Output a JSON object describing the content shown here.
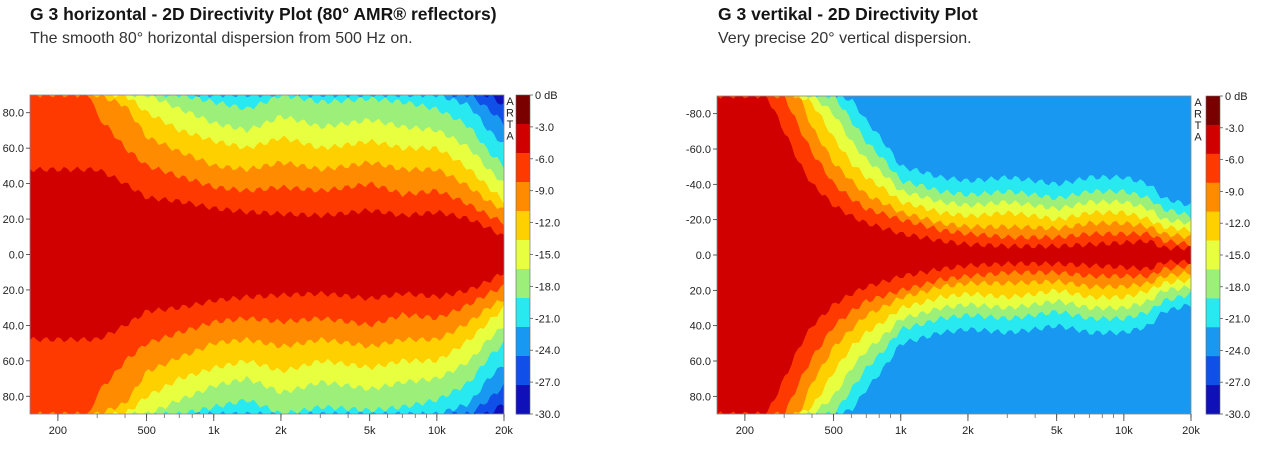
{
  "chart_data": [
    {
      "type": "heatmap",
      "title": "G 3 horizontal - 2D Directivity Plot (80° AMR® reflectors)",
      "subtitle": "The smooth 80° horizontal dispersion from 500 Hz on.",
      "x_scale": "log",
      "xlim": [
        150,
        20000
      ],
      "ylim": [
        -90,
        90
      ],
      "x_ticks": [
        200,
        500,
        1000,
        2000,
        5000,
        10000,
        20000
      ],
      "x_tick_labels": [
        "200",
        "500",
        "1k",
        "2k",
        "5k",
        "10k",
        "20k"
      ],
      "y_ticks": [
        -80,
        -60,
        -40,
        -20,
        0,
        20,
        40,
        60,
        80
      ],
      "y_tick_labels": [
        "80.0",
        "60.0",
        "40.0",
        "20.0",
        "0.0",
        "20.0",
        "40.0",
        "60.0",
        "80.0"
      ],
      "colorbar_labels": [
        "0 dB",
        "-3.0",
        "-6.0",
        "-9.0",
        "-12.0",
        "-15.0",
        "-18.0",
        "-21.0",
        "-24.0",
        "-27.0",
        "-30.0"
      ],
      "colorbar_colors": [
        "#7a0000",
        "#d10000",
        "#ff3a00",
        "#ff8c00",
        "#ffd000",
        "#e8ff40",
        "#9cf07a",
        "#28e8f0",
        "#1898f0",
        "#1050e8",
        "#1010b8"
      ],
      "watermark": "ARTA",
      "contours_deg": {
        "freq": [
          150,
          200,
          280,
          300,
          400,
          500,
          700,
          1000,
          1400,
          2000,
          3000,
          5000,
          7000,
          10000,
          14000,
          17000,
          20000
        ],
        "level_3": [
          48,
          48,
          48,
          48,
          40,
          32,
          30,
          26,
          24,
          23,
          22,
          25,
          22,
          24,
          20,
          15,
          10
        ],
        "level_6": [
          90,
          90,
          90,
          78,
          60,
          50,
          44,
          38,
          36,
          38,
          36,
          40,
          34,
          36,
          28,
          22,
          18
        ],
        "level_9": [
          90,
          90,
          90,
          90,
          84,
          66,
          58,
          50,
          48,
          52,
          48,
          52,
          48,
          48,
          38,
          30,
          25
        ],
        "level_12": [
          90,
          90,
          90,
          90,
          90,
          80,
          70,
          64,
          60,
          66,
          60,
          64,
          60,
          60,
          48,
          38,
          30
        ],
        "level_15": [
          90,
          90,
          90,
          90,
          90,
          90,
          82,
          74,
          70,
          78,
          72,
          76,
          72,
          70,
          60,
          48,
          40
        ],
        "level_18": [
          90,
          90,
          90,
          90,
          90,
          90,
          90,
          86,
          82,
          90,
          86,
          88,
          86,
          82,
          72,
          58,
          50
        ],
        "level_21": [
          90,
          90,
          90,
          90,
          90,
          90,
          90,
          90,
          90,
          90,
          90,
          90,
          90,
          90,
          84,
          70,
          62
        ],
        "level_24": [
          90,
          90,
          90,
          90,
          90,
          90,
          90,
          90,
          90,
          90,
          90,
          90,
          90,
          90,
          90,
          82,
          74
        ],
        "level_27": [
          90,
          90,
          90,
          90,
          90,
          90,
          90,
          90,
          90,
          90,
          90,
          90,
          90,
          90,
          90,
          90,
          84
        ]
      }
    },
    {
      "type": "heatmap",
      "title": "G 3 vertikal - 2D Directivity Plot",
      "subtitle": "Very precise 20° vertical dispersion.",
      "x_scale": "log",
      "xlim": [
        150,
        20000
      ],
      "ylim": [
        -90,
        90
      ],
      "x_ticks": [
        200,
        500,
        1000,
        2000,
        5000,
        10000,
        20000
      ],
      "x_tick_labels": [
        "200",
        "500",
        "1k",
        "2k",
        "5k",
        "10k",
        "20k"
      ],
      "y_ticks": [
        -80,
        -60,
        -40,
        -20,
        0,
        20,
        40,
        60,
        80
      ],
      "y_tick_labels": [
        "-80.0",
        "-60.0",
        "-40.0",
        "-20.0",
        "0.0",
        "20.0",
        "40.0",
        "60.0",
        "80.0"
      ],
      "colorbar_labels": [
        "0 dB",
        "-3.0",
        "-6.0",
        "-9.0",
        "-12.0",
        "-15.0",
        "-18.0",
        "-21.0",
        "-24.0",
        "-27.0",
        "-30.0"
      ],
      "colorbar_colors": [
        "#7a0000",
        "#d10000",
        "#ff3a00",
        "#ff8c00",
        "#ffd000",
        "#e8ff40",
        "#9cf07a",
        "#28e8f0",
        "#1898f0",
        "#1050e8",
        "#1010b8"
      ],
      "watermark": "ARTA",
      "contours_deg": {
        "freq": [
          150,
          200,
          250,
          300,
          350,
          400,
          500,
          600,
          700,
          1000,
          1500,
          2000,
          3000,
          5000,
          7000,
          10000,
          13000,
          15000,
          20000
        ],
        "level_3": [
          90,
          90,
          90,
          70,
          52,
          40,
          28,
          22,
          18,
          12,
          8,
          6,
          5,
          5,
          6,
          7,
          8,
          4,
          4
        ],
        "level_6": [
          90,
          90,
          90,
          90,
          72,
          58,
          40,
          32,
          26,
          20,
          14,
          12,
          10,
          10,
          12,
          12,
          12,
          8,
          6
        ],
        "level_9": [
          90,
          90,
          90,
          90,
          90,
          72,
          52,
          42,
          34,
          24,
          18,
          16,
          16,
          15,
          18,
          18,
          16,
          12,
          10
        ],
        "level_12": [
          90,
          90,
          90,
          90,
          90,
          86,
          66,
          52,
          44,
          30,
          24,
          22,
          24,
          20,
          24,
          24,
          20,
          16,
          14
        ],
        "level_15": [
          90,
          90,
          90,
          90,
          90,
          90,
          80,
          64,
          54,
          36,
          30,
          28,
          30,
          26,
          30,
          30,
          26,
          20,
          18
        ],
        "level_18": [
          90,
          90,
          90,
          90,
          90,
          90,
          90,
          76,
          64,
          42,
          36,
          34,
          36,
          32,
          36,
          36,
          32,
          26,
          22
        ],
        "level_21": [
          90,
          90,
          90,
          90,
          90,
          90,
          90,
          88,
          76,
          50,
          44,
          42,
          44,
          40,
          44,
          44,
          40,
          32,
          28
        ]
      }
    }
  ]
}
